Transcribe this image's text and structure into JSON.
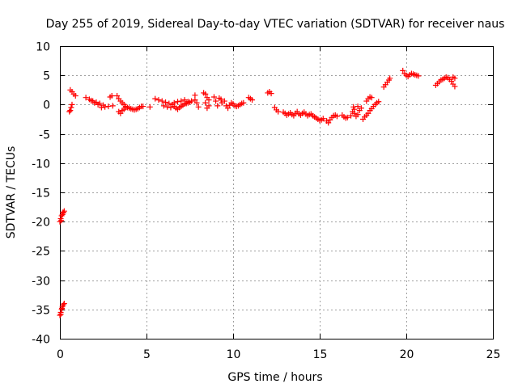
{
  "chart_data": {
    "type": "scatter",
    "title": "Day 255 of 2019, Sidereal Day-to-day VTEC variation (SDTVAR) for receiver naus",
    "xlabel": "GPS time / hours",
    "ylabel": "SDTVAR / TECUs",
    "xlim": [
      0,
      25
    ],
    "ylim": [
      -40,
      10
    ],
    "x_ticks": [
      0,
      5,
      10,
      15,
      20,
      25
    ],
    "x_tick_labels": [
      "0",
      "5",
      "10",
      "15",
      "20",
      "25"
    ],
    "y_ticks": [
      -40,
      -35,
      -30,
      -25,
      -20,
      -15,
      -10,
      -5,
      0,
      5,
      10
    ],
    "y_tick_labels": [
      "-40",
      "-35",
      "-30",
      "-25",
      "-20",
      "-15",
      "-10",
      "-5",
      "0",
      "5",
      "10"
    ],
    "grid": true,
    "marker": "plus",
    "color": "#ff0000",
    "series": [
      {
        "name": "SDTVAR",
        "points": [
          [
            0.0,
            -36
          ],
          [
            0.05,
            -35.5
          ],
          [
            0.1,
            -35
          ],
          [
            0.15,
            -34.5
          ],
          [
            0.2,
            -34.2
          ],
          [
            0.25,
            -34
          ],
          [
            0.05,
            -35.8
          ],
          [
            0.12,
            -34.8
          ],
          [
            0.0,
            -20
          ],
          [
            0.05,
            -19.5
          ],
          [
            0.1,
            -19
          ],
          [
            0.15,
            -18.8
          ],
          [
            0.2,
            -18.5
          ],
          [
            0.25,
            -18.2
          ],
          [
            0.08,
            -19.8
          ],
          [
            0.18,
            -18.4
          ],
          [
            0.6,
            -1
          ],
          [
            0.65,
            -0.5
          ],
          [
            0.7,
            0
          ],
          [
            0.55,
            -1.2
          ],
          [
            0.6,
            2.5
          ],
          [
            0.7,
            2.2
          ],
          [
            0.8,
            1.8
          ],
          [
            0.9,
            1.5
          ],
          [
            1.5,
            1.2
          ],
          [
            1.7,
            0.9
          ],
          [
            1.9,
            0.6
          ],
          [
            2.1,
            0.4
          ],
          [
            2.3,
            0.2
          ],
          [
            2.5,
            -0.1
          ],
          [
            2.6,
            -0.4
          ],
          [
            2.4,
            -0.5
          ],
          [
            2.2,
            0.0
          ],
          [
            2.0,
            0.3
          ],
          [
            1.8,
            0.7
          ],
          [
            2.8,
            -0.3
          ],
          [
            2.9,
            1.3
          ],
          [
            3.0,
            1.5
          ],
          [
            3.05,
            -0.2
          ],
          [
            3.3,
            1.5
          ],
          [
            3.4,
            1.0
          ],
          [
            3.5,
            0.6
          ],
          [
            3.6,
            0.3
          ],
          [
            3.7,
            0.0
          ],
          [
            3.8,
            -0.3
          ],
          [
            3.9,
            -0.5
          ],
          [
            4.0,
            -0.6
          ],
          [
            4.1,
            -0.7
          ],
          [
            4.2,
            -0.8
          ],
          [
            4.3,
            -0.9
          ],
          [
            4.4,
            -0.8
          ],
          [
            4.5,
            -0.7
          ],
          [
            4.6,
            -0.5
          ],
          [
            4.7,
            -0.3
          ],
          [
            3.4,
            -1.2
          ],
          [
            3.5,
            -1.5
          ],
          [
            3.6,
            -1.0
          ],
          [
            3.7,
            -0.8
          ],
          [
            3.8,
            -0.5
          ],
          [
            4.8,
            -0.3
          ],
          [
            5.2,
            -0.4
          ],
          [
            5.5,
            1.0
          ],
          [
            5.7,
            0.8
          ],
          [
            5.9,
            0.6
          ],
          [
            6.1,
            0.4
          ],
          [
            6.3,
            0.2
          ],
          [
            6.5,
            0.0
          ],
          [
            6.6,
            -0.3
          ],
          [
            6.7,
            -0.6
          ],
          [
            6.8,
            -0.8
          ],
          [
            6.9,
            -0.5
          ],
          [
            7.0,
            -0.3
          ],
          [
            7.1,
            -0.1
          ],
          [
            7.2,
            0.1
          ],
          [
            7.3,
            0.2
          ],
          [
            7.4,
            0.3
          ],
          [
            7.5,
            0.4
          ],
          [
            7.6,
            0.6
          ],
          [
            6.0,
            -0.2
          ],
          [
            6.2,
            -0.4
          ],
          [
            6.4,
            -0.5
          ],
          [
            6.6,
            0.3
          ],
          [
            6.8,
            0.5
          ],
          [
            7.0,
            0.6
          ],
          [
            7.2,
            0.8
          ],
          [
            7.4,
            0.5
          ],
          [
            7.8,
            0.8
          ],
          [
            7.8,
            1.6
          ],
          [
            7.9,
            0.3
          ],
          [
            8.0,
            -0.4
          ],
          [
            8.3,
            2.0
          ],
          [
            8.4,
            1.8
          ],
          [
            8.5,
            1.2
          ],
          [
            8.6,
            0.8
          ],
          [
            8.4,
            0.3
          ],
          [
            8.6,
            -0.2
          ],
          [
            8.5,
            -0.6
          ],
          [
            8.9,
            1.3
          ],
          [
            9.0,
            0.6
          ],
          [
            9.1,
            -0.2
          ],
          [
            9.2,
            1.1
          ],
          [
            9.3,
            0.9
          ],
          [
            9.35,
            0.3
          ],
          [
            9.5,
            0.6
          ],
          [
            9.6,
            -0.2
          ],
          [
            9.7,
            -0.6
          ],
          [
            9.8,
            -0.1
          ],
          [
            9.9,
            0.3
          ],
          [
            10.0,
            0.1
          ],
          [
            10.1,
            -0.2
          ],
          [
            10.2,
            -0.3
          ],
          [
            10.3,
            -0.2
          ],
          [
            10.4,
            0.0
          ],
          [
            10.5,
            0.2
          ],
          [
            10.6,
            0.3
          ],
          [
            10.9,
            1.2
          ],
          [
            11.0,
            1.0
          ],
          [
            11.1,
            0.8
          ],
          [
            12.0,
            2.0
          ],
          [
            12.1,
            2.2
          ],
          [
            12.2,
            1.9
          ],
          [
            12.4,
            -0.5
          ],
          [
            12.5,
            -0.9
          ],
          [
            12.6,
            -1.2
          ],
          [
            12.9,
            -1.3
          ],
          [
            13.0,
            -1.5
          ],
          [
            13.1,
            -1.8
          ],
          [
            13.2,
            -1.6
          ],
          [
            13.3,
            -1.4
          ],
          [
            13.4,
            -1.7
          ],
          [
            13.5,
            -1.9
          ],
          [
            13.6,
            -1.5
          ],
          [
            13.7,
            -1.2
          ],
          [
            13.8,
            -1.6
          ],
          [
            13.9,
            -1.8
          ],
          [
            14.0,
            -1.5
          ],
          [
            14.1,
            -1.3
          ],
          [
            14.2,
            -1.6
          ],
          [
            14.3,
            -1.9
          ],
          [
            14.4,
            -1.7
          ],
          [
            14.5,
            -1.6
          ],
          [
            14.6,
            -1.9
          ],
          [
            14.7,
            -2.1
          ],
          [
            14.8,
            -2.3
          ],
          [
            14.9,
            -2.5
          ],
          [
            15.0,
            -2.7
          ],
          [
            15.1,
            -2.6
          ],
          [
            15.2,
            -2.4
          ],
          [
            15.4,
            -2.8
          ],
          [
            15.5,
            -3.1
          ],
          [
            15.6,
            -2.6
          ],
          [
            15.7,
            -2.2
          ],
          [
            15.8,
            -1.9
          ],
          [
            15.9,
            -1.8
          ],
          [
            16.0,
            -2.0
          ],
          [
            16.3,
            -1.8
          ],
          [
            16.4,
            -2.1
          ],
          [
            16.5,
            -2.3
          ],
          [
            16.6,
            -2.2
          ],
          [
            16.8,
            -1.9
          ],
          [
            16.9,
            -1.2
          ],
          [
            17.0,
            -1.5
          ],
          [
            17.1,
            -2.0
          ],
          [
            17.2,
            -1.7
          ],
          [
            17.3,
            -1.0
          ],
          [
            17.4,
            -0.6
          ],
          [
            17.2,
            -0.3
          ],
          [
            17.0,
            -0.8
          ],
          [
            16.95,
            -0.4
          ],
          [
            17.5,
            -2.5
          ],
          [
            17.6,
            -2.1
          ],
          [
            17.7,
            -1.8
          ],
          [
            17.8,
            -1.5
          ],
          [
            17.9,
            -1.0
          ],
          [
            18.0,
            -0.7
          ],
          [
            18.1,
            -0.3
          ],
          [
            18.2,
            0.0
          ],
          [
            18.3,
            0.3
          ],
          [
            18.4,
            0.5
          ],
          [
            17.7,
            0.6
          ],
          [
            17.8,
            1.0
          ],
          [
            17.9,
            1.3
          ],
          [
            18.0,
            1.2
          ],
          [
            18.7,
            3.0
          ],
          [
            18.8,
            3.4
          ],
          [
            18.9,
            3.8
          ],
          [
            19.0,
            4.2
          ],
          [
            19.05,
            4.5
          ],
          [
            19.8,
            5.8
          ],
          [
            19.9,
            5.3
          ],
          [
            20.0,
            5.0
          ],
          [
            20.1,
            4.8
          ],
          [
            20.2,
            5.1
          ],
          [
            20.3,
            5.3
          ],
          [
            20.4,
            5.2
          ],
          [
            20.5,
            5.1
          ],
          [
            20.6,
            5.0
          ],
          [
            20.7,
            4.9
          ],
          [
            21.7,
            3.3
          ],
          [
            21.8,
            3.6
          ],
          [
            21.9,
            3.9
          ],
          [
            22.0,
            4.2
          ],
          [
            22.1,
            4.3
          ],
          [
            22.2,
            4.5
          ],
          [
            22.3,
            4.7
          ],
          [
            22.4,
            4.6
          ],
          [
            22.5,
            4.3
          ],
          [
            22.6,
            4.0
          ],
          [
            22.7,
            3.5
          ],
          [
            22.8,
            3.1
          ],
          [
            22.7,
            4.7
          ],
          [
            22.8,
            4.5
          ]
        ]
      }
    ]
  }
}
